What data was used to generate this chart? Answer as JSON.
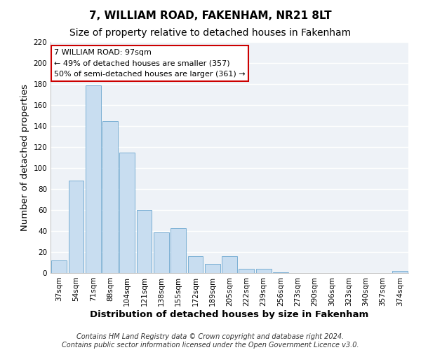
{
  "title": "7, WILLIAM ROAD, FAKENHAM, NR21 8LT",
  "subtitle": "Size of property relative to detached houses in Fakenham",
  "xlabel": "Distribution of detached houses by size in Fakenham",
  "ylabel": "Number of detached properties",
  "bar_color": "#c8ddf0",
  "bar_edge_color": "#7aafd4",
  "categories": [
    "37sqm",
    "54sqm",
    "71sqm",
    "88sqm",
    "104sqm",
    "121sqm",
    "138sqm",
    "155sqm",
    "172sqm",
    "189sqm",
    "205sqm",
    "222sqm",
    "239sqm",
    "256sqm",
    "273sqm",
    "290sqm",
    "306sqm",
    "323sqm",
    "340sqm",
    "357sqm",
    "374sqm"
  ],
  "values": [
    12,
    88,
    179,
    145,
    115,
    60,
    39,
    43,
    16,
    9,
    16,
    4,
    4,
    1,
    0,
    0,
    0,
    0,
    0,
    0,
    2
  ],
  "ylim": [
    0,
    220
  ],
  "yticks": [
    0,
    20,
    40,
    60,
    80,
    100,
    120,
    140,
    160,
    180,
    200,
    220
  ],
  "annotation_box_text": [
    "7 WILLIAM ROAD: 97sqm",
    "← 49% of detached houses are smaller (357)",
    "50% of semi-detached houses are larger (361) →"
  ],
  "annotation_box_color": "#ffffff",
  "annotation_box_edge_color": "#cc0000",
  "footer_line1": "Contains HM Land Registry data © Crown copyright and database right 2024.",
  "footer_line2": "Contains public sector information licensed under the Open Government Licence v3.0.",
  "background_color": "#ffffff",
  "plot_bg_color": "#eef2f7",
  "grid_color": "#ffffff",
  "title_fontsize": 11,
  "subtitle_fontsize": 10,
  "axis_label_fontsize": 9.5,
  "tick_fontsize": 7.5,
  "footer_fontsize": 7
}
